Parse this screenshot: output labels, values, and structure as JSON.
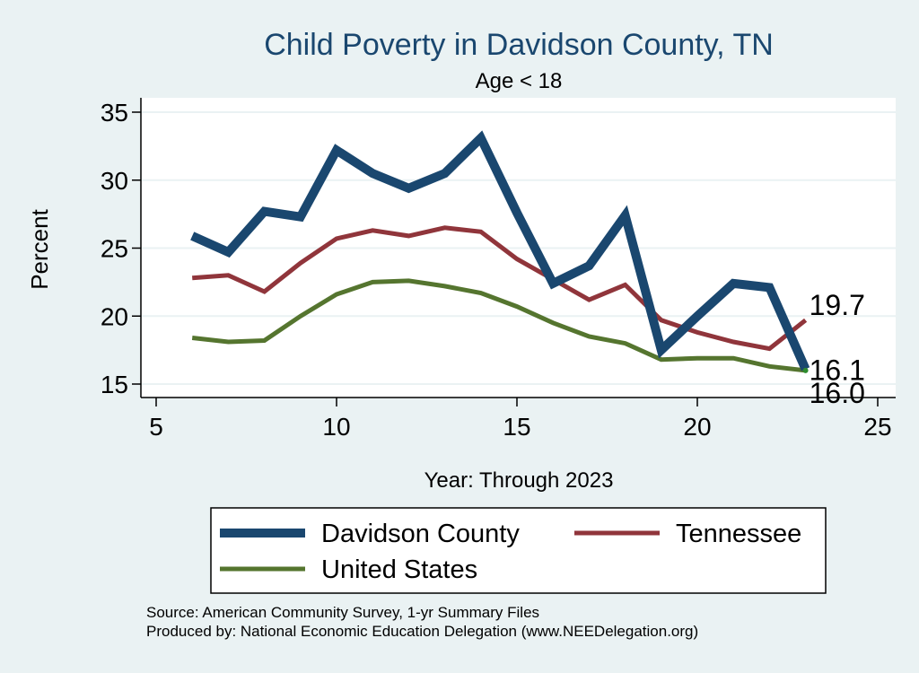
{
  "chart_data": {
    "type": "line",
    "title": "Child Poverty in Davidson County, TN",
    "subtitle": "Age < 18",
    "xlabel": "Year: Through 2023",
    "ylabel": "Percent",
    "xlim": [
      5,
      25
    ],
    "ylim": [
      14.3,
      35.3
    ],
    "xticks": [
      5,
      10,
      15,
      20,
      25
    ],
    "yticks": [
      15,
      20,
      25,
      30,
      35
    ],
    "grid": true,
    "legend_position": "bottom",
    "x": [
      6,
      7,
      8,
      9,
      10,
      11,
      12,
      13,
      14,
      15,
      16,
      17,
      18,
      19,
      20,
      21,
      22,
      23
    ],
    "series": [
      {
        "name": "Davidson County",
        "color": "#1a476f",
        "values": [
          25.9,
          24.7,
          27.7,
          27.3,
          32.2,
          30.5,
          29.4,
          30.5,
          33.1,
          27.6,
          22.4,
          23.7,
          27.4,
          17.5,
          20.0,
          22.4,
          22.1,
          16.1
        ],
        "end_label": "16.1"
      },
      {
        "name": "Tennessee",
        "color": "#90353b",
        "values": [
          22.8,
          23.0,
          21.8,
          23.9,
          25.7,
          26.3,
          25.9,
          26.5,
          26.2,
          24.2,
          22.7,
          21.2,
          22.3,
          19.7,
          18.8,
          18.1,
          17.6,
          19.7
        ],
        "end_label": "19.7"
      },
      {
        "name": "United States",
        "color": "#55752f",
        "values": [
          18.4,
          18.1,
          18.2,
          20.0,
          21.6,
          22.5,
          22.6,
          22.2,
          21.7,
          20.7,
          19.5,
          18.5,
          18.0,
          16.8,
          16.9,
          16.9,
          16.3,
          16.0
        ],
        "end_label": "16.0"
      }
    ],
    "notes": [
      "Source: American Community Survey, 1-yr Summary Files",
      "Produced by: National Economic Education Delegation (www.NEEDelegation.org)"
    ]
  },
  "colors": {
    "background": "#eaf2f3",
    "plot_background": "#ffffff",
    "title": "#1a476f",
    "text": "#000000",
    "grid": "#eaf2f3"
  }
}
